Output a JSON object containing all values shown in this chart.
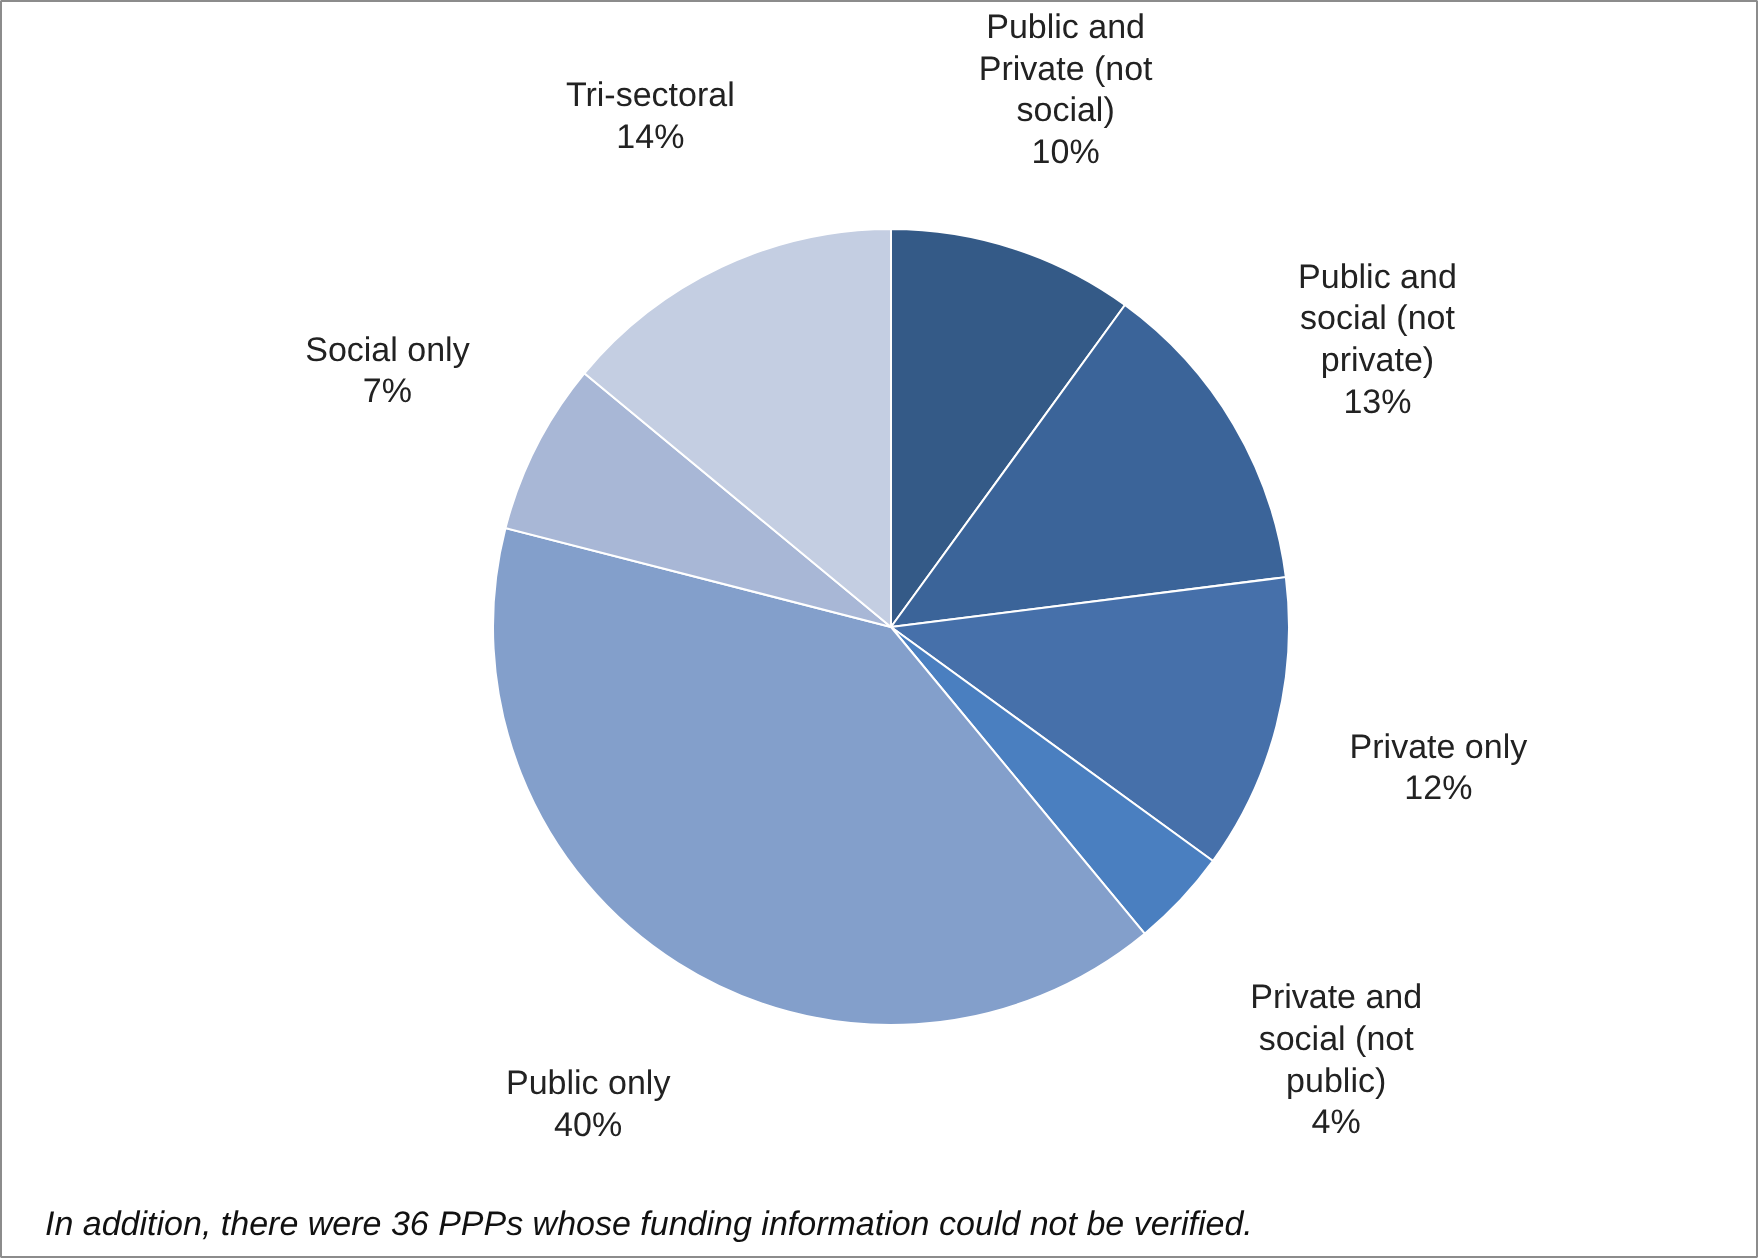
{
  "chart_data": {
    "type": "pie",
    "categories": [
      "Public and Private (not social)",
      "Public and social (not private)",
      "Private only",
      "Private and social (not public)",
      "Public only",
      "Social only",
      "Tri-sectoral"
    ],
    "values": [
      10,
      13,
      12,
      4,
      40,
      7,
      14
    ],
    "value_labels": [
      "10%",
      "13%",
      "12%",
      "4%",
      "40%",
      "7%",
      "14%"
    ],
    "colors": [
      "#345a87",
      "#3b6499",
      "#4670aa",
      "#4a7fc0",
      "#839fcb",
      "#a8b7d6",
      "#c4cee2"
    ],
    "annotations": [
      "In addition, there were  36 PPPs whose funding information could not be verified."
    ]
  }
}
